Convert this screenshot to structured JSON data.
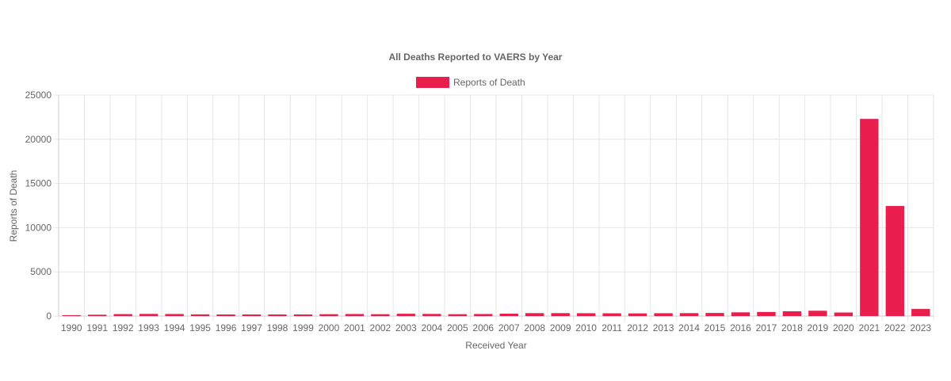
{
  "chart_data": {
    "type": "bar",
    "title": "All Deaths Reported to VAERS by Year",
    "xlabel": "Received Year",
    "ylabel": "Reports of Death",
    "ylim": [
      0,
      25000
    ],
    "yticks": [
      0,
      5000,
      10000,
      15000,
      20000,
      25000
    ],
    "grid": true,
    "legend_placement": "top-center",
    "bar_color": "#e91e4c",
    "categories": [
      "1990",
      "1991",
      "1992",
      "1993",
      "1994",
      "1995",
      "1996",
      "1997",
      "1998",
      "1999",
      "2000",
      "2001",
      "2002",
      "2003",
      "2004",
      "2005",
      "2006",
      "2007",
      "2008",
      "2009",
      "2010",
      "2011",
      "2012",
      "2013",
      "2014",
      "2015",
      "2016",
      "2017",
      "2018",
      "2019",
      "2020",
      "2021",
      "2022",
      "2023"
    ],
    "series": [
      {
        "name": "Reports of Death",
        "values": [
          100,
          150,
          220,
          240,
          230,
          190,
          180,
          180,
          180,
          180,
          210,
          230,
          210,
          260,
          240,
          210,
          230,
          270,
          330,
          330,
          320,
          310,
          300,
          320,
          330,
          350,
          420,
          460,
          540,
          600,
          400,
          22300,
          12450,
          800
        ]
      }
    ]
  }
}
